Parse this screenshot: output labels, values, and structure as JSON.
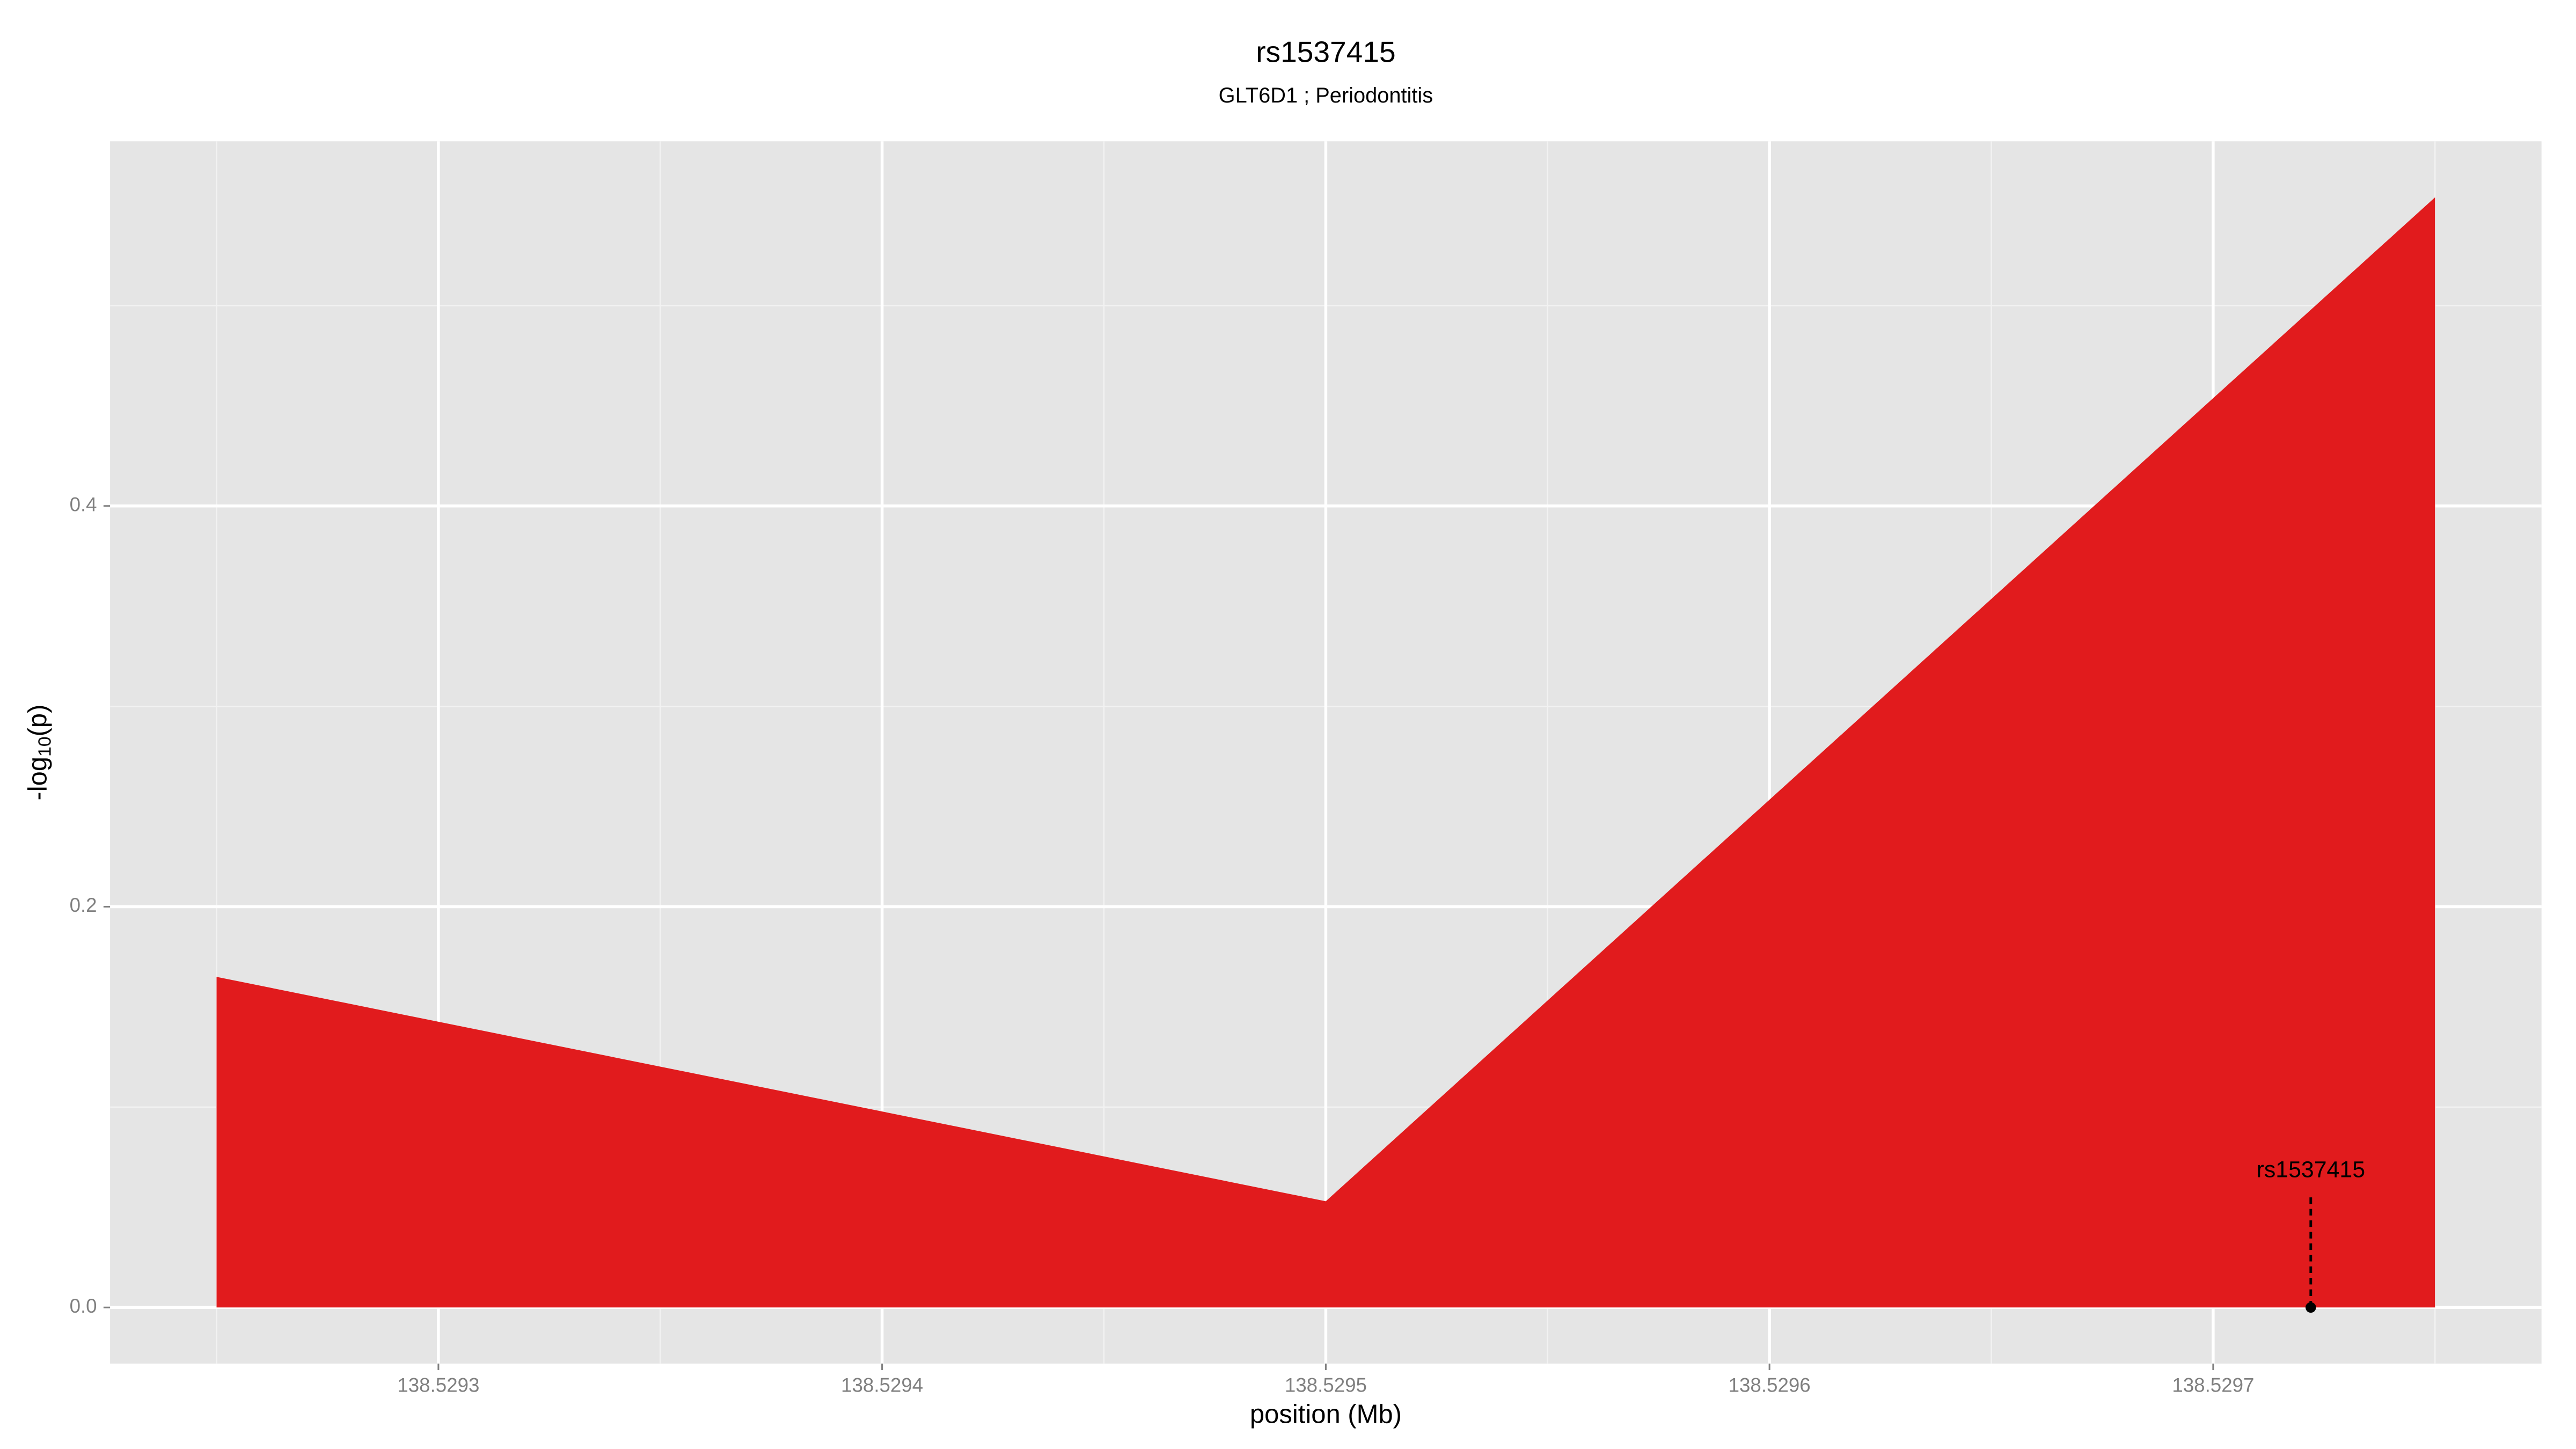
{
  "chart_data": {
    "type": "area",
    "title": "rs1537415",
    "subtitle": "GLT6D1 ; Periodontitis",
    "x_label": "position (Mb)",
    "y_label": [
      "-log",
      "10",
      "(p)"
    ],
    "x": [
      138.52925,
      138.5295,
      138.52975
    ],
    "values": [
      0.165,
      0.053,
      0.554
    ],
    "color": "#e11b1d",
    "xlim": [
      138.529226,
      138.529774
    ],
    "ylim": [
      -0.028,
      0.582
    ],
    "xticks": [
      138.5293,
      138.5294,
      138.5295,
      138.5296,
      138.5297
    ],
    "yticks": [
      {
        "value": 0,
        "label": "0.0"
      },
      0.2,
      0.4
    ],
    "minor_xticks": [
      138.52925,
      138.52935,
      138.52945,
      138.52955,
      138.52965,
      138.52975
    ],
    "minor_yticks": [
      0.1,
      0.3,
      0.5
    ],
    "grid": true,
    "annotation": {
      "text": "rs1537415",
      "x": 138.529722,
      "y": 0
    }
  }
}
